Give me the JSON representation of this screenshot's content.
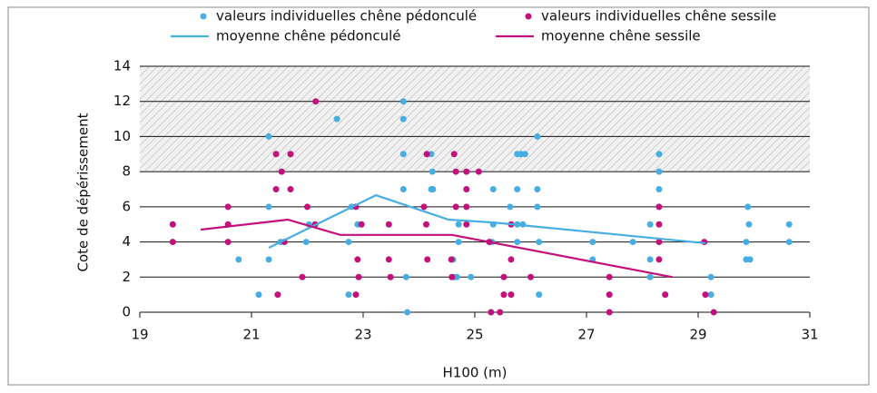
{
  "chart_data": {
    "type": "scatter",
    "x_label": "H100 (m)",
    "y_label": "Cote de dépérissement",
    "xlim": [
      19,
      31
    ],
    "xticks": [
      19,
      21,
      23,
      25,
      27,
      29,
      31
    ],
    "ylim": [
      0,
      14
    ],
    "yticks": [
      0,
      2,
      4,
      6,
      8,
      10,
      12,
      14
    ],
    "grid": true,
    "hatched_range": [
      8,
      14
    ],
    "series": [
      {
        "name": "valeurs individuelles chêne pédonculé",
        "color": "#47aee3",
        "type": "scatter",
        "x": [
          20.77,
          21.13,
          21.31,
          21.31,
          21.31,
          21.52,
          21.98,
          22.03,
          22.53,
          22.74,
          22.74,
          22.79,
          22.9,
          23.72,
          23.72,
          23.72,
          23.72,
          23.77,
          23.79,
          24.22,
          24.24,
          24.22,
          24.25,
          24.61,
          24.63,
          24.68,
          24.71,
          24.71,
          24.93,
          25.33,
          25.33,
          25.31,
          25.63,
          25.76,
          25.83,
          25.9,
          25.76,
          25.76,
          25.86,
          25.76,
          26.12,
          26.12,
          26.12,
          26.15,
          26.15,
          27.11,
          27.11,
          27.83,
          28.14,
          28.14,
          28.14,
          28.3,
          28.3,
          28.3,
          28.3,
          29.23,
          29.23,
          29.89,
          29.91,
          29.86,
          29.86,
          29.93,
          30.63,
          30.63
        ],
        "values": [
          3,
          1,
          10,
          6,
          3,
          4,
          4,
          5,
          11,
          1,
          4,
          6,
          5,
          12,
          11,
          9,
          7,
          2,
          0,
          9,
          8,
          7,
          7,
          3,
          2,
          2,
          4,
          5,
          2,
          7,
          5,
          4,
          6,
          9,
          9,
          9,
          7,
          5,
          5,
          4,
          10,
          7,
          6,
          4,
          1,
          4,
          3,
          4,
          2,
          5,
          3,
          9,
          8,
          7,
          6,
          2,
          1,
          6,
          5,
          4,
          3,
          3,
          5,
          4
        ]
      },
      {
        "name": "valeurs individuelles chêne sessile",
        "color": "#c2117a",
        "type": "scatter",
        "x": [
          19.59,
          19.59,
          20.58,
          20.58,
          20.58,
          21.44,
          21.44,
          21.47,
          21.54,
          21.59,
          21.7,
          21.7,
          21.91,
          22.0,
          22.14,
          22.15,
          22.87,
          22.9,
          22.92,
          22.97,
          22.87,
          23.46,
          23.46,
          23.49,
          24.09,
          24.13,
          24.14,
          24.15,
          24.63,
          24.66,
          24.59,
          24.58,
          24.66,
          24.85,
          24.85,
          24.85,
          24.85,
          25.07,
          25.26,
          25.29,
          25.45,
          25.52,
          25.52,
          25.65,
          25.65,
          25.65,
          26.0,
          27.41,
          27.41,
          27.41,
          28.3,
          28.3,
          28.3,
          28.3,
          28.41,
          29.11,
          29.13,
          29.28
        ],
        "values": [
          5,
          4,
          6,
          5,
          4,
          9,
          7,
          1,
          8,
          4,
          9,
          7,
          2,
          6,
          5,
          12,
          6,
          3,
          2,
          5,
          1,
          5,
          3,
          2,
          6,
          5,
          9,
          3,
          9,
          8,
          2,
          3,
          6,
          8,
          7,
          6,
          5,
          8,
          4,
          0,
          0,
          2,
          1,
          1,
          3,
          5,
          2,
          2,
          1,
          0,
          3,
          4,
          5,
          6,
          1,
          4,
          1,
          0
        ]
      },
      {
        "name": "moyenne chêne pédonculé",
        "color": "#47aee3",
        "type": "line",
        "x": [
          21.31,
          23.23,
          24.53,
          25.36,
          29.13
        ],
        "values": [
          3.67,
          6.66,
          5.27,
          5.1,
          3.93
        ]
      },
      {
        "name": "moyenne chêne sessile",
        "color": "#c2117a",
        "type": "line",
        "x": [
          20.09,
          21.65,
          22.59,
          24.59,
          28.54
        ],
        "values": [
          4.7,
          5.27,
          4.4,
          4.4,
          2.0
        ]
      }
    ]
  }
}
